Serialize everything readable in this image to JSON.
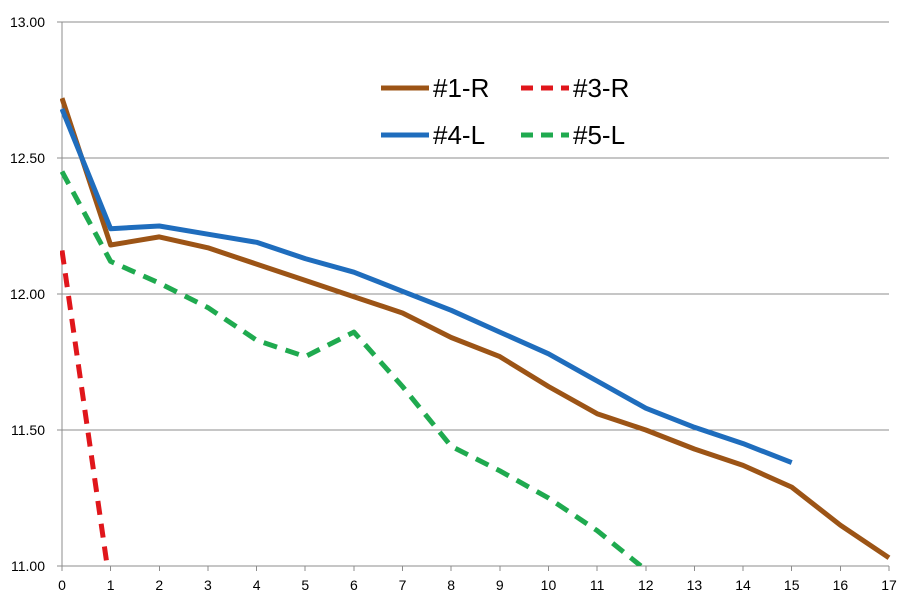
{
  "chart_data": {
    "type": "line",
    "title": "",
    "xlabel": "",
    "ylabel": "",
    "x": [
      0,
      1,
      2,
      3,
      4,
      5,
      6,
      7,
      8,
      9,
      10,
      11,
      12,
      13,
      14,
      15,
      16,
      17
    ],
    "xlim": [
      0,
      17
    ],
    "ylim": [
      11.0,
      13.0
    ],
    "y_ticks": [
      "11.00",
      "11.50",
      "12.00",
      "12.50",
      "13.00"
    ],
    "x_ticks": [
      "0",
      "1",
      "2",
      "3",
      "4",
      "5",
      "6",
      "7",
      "8",
      "9",
      "10",
      "11",
      "12",
      "13",
      "14",
      "15",
      "16",
      "17"
    ],
    "grid": true,
    "legend_position": "top-center",
    "series": [
      {
        "name": "#1-R",
        "color": "#9c5416",
        "dashed": false,
        "points": [
          [
            0,
            12.72
          ],
          [
            1,
            12.18
          ],
          [
            2,
            12.21
          ],
          [
            3,
            12.17
          ],
          [
            4,
            12.11
          ],
          [
            5,
            12.05
          ],
          [
            6,
            11.99
          ],
          [
            7,
            11.93
          ],
          [
            8,
            11.84
          ],
          [
            9,
            11.77
          ],
          [
            10,
            11.66
          ],
          [
            11,
            11.56
          ],
          [
            12,
            11.5
          ],
          [
            13,
            11.43
          ],
          [
            14,
            11.37
          ],
          [
            15,
            11.29
          ],
          [
            16,
            11.15
          ],
          [
            17,
            11.03
          ]
        ]
      },
      {
        "name": "#3-R",
        "color": "#e0161b",
        "dashed": true,
        "points": [
          [
            0,
            12.16
          ],
          [
            0.93,
            11.0
          ]
        ]
      },
      {
        "name": "#4-L",
        "color": "#1f6dbd",
        "dashed": false,
        "points": [
          [
            0,
            12.68
          ],
          [
            1,
            12.24
          ],
          [
            2,
            12.25
          ],
          [
            3,
            12.22
          ],
          [
            4,
            12.19
          ],
          [
            5,
            12.13
          ],
          [
            6,
            12.08
          ],
          [
            7,
            12.01
          ],
          [
            8,
            11.94
          ],
          [
            9,
            11.86
          ],
          [
            10,
            11.78
          ],
          [
            11,
            11.68
          ],
          [
            12,
            11.58
          ],
          [
            13,
            11.51
          ],
          [
            14,
            11.45
          ],
          [
            15,
            11.38
          ]
        ]
      },
      {
        "name": "#5-L",
        "color": "#1faa4f",
        "dashed": true,
        "points": [
          [
            0,
            12.45
          ],
          [
            1,
            12.12
          ],
          [
            2,
            12.04
          ],
          [
            3,
            11.95
          ],
          [
            4,
            11.83
          ],
          [
            5,
            11.77
          ],
          [
            6,
            11.86
          ],
          [
            7,
            11.66
          ],
          [
            8,
            11.44
          ],
          [
            9,
            11.35
          ],
          [
            10,
            11.25
          ],
          [
            11,
            11.13
          ],
          [
            11.9,
            11.0
          ]
        ]
      }
    ]
  }
}
